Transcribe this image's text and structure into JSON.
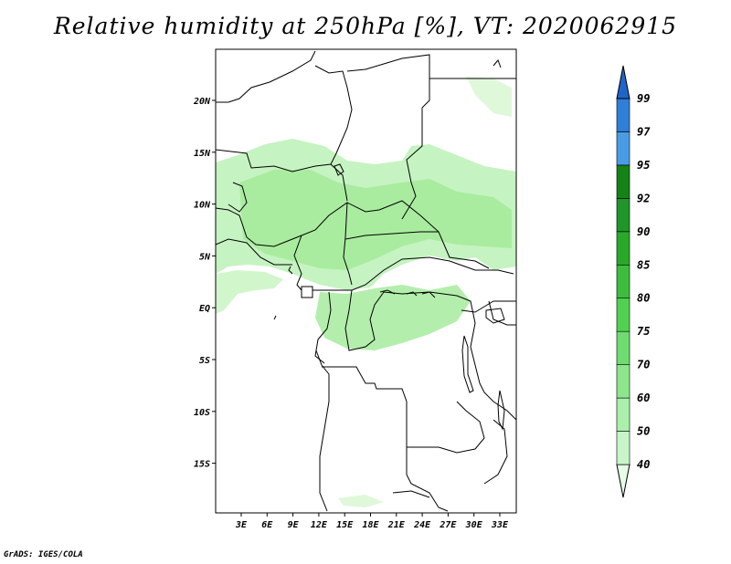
{
  "title": "Relative humidity at 250hPa [%], VT: 2020062915",
  "credit": "GrADS: IGES/COLA",
  "map": {
    "variable": "Relative humidity",
    "level": "250hPa",
    "units": "%",
    "valid_time": "2020062915",
    "region": "Central Africa",
    "lat_labels": [
      "20N",
      "15N",
      "10N",
      "5N",
      "EQ",
      "5S",
      "10S",
      "15S"
    ],
    "lon_labels": [
      "3E",
      "6E",
      "9E",
      "12E",
      "15E",
      "18E",
      "21E",
      "24E",
      "27E",
      "30E",
      "33E"
    ]
  },
  "colorbar": {
    "levels": [
      "40",
      "50",
      "60",
      "70",
      "75",
      "80",
      "85",
      "90",
      "92",
      "95",
      "97",
      "99"
    ],
    "colors": [
      "#e6fce6",
      "#c8f5c8",
      "#aaf0aa",
      "#8ce68c",
      "#6edc6e",
      "#50d250",
      "#3cbe3c",
      "#28aa28",
      "#1e9628",
      "#148214",
      "#4a9be6",
      "#2f7fd8",
      "#1f64c8"
    ]
  },
  "colors": {
    "land_border": "#000000",
    "humid_fill": "#a8eea0"
  }
}
